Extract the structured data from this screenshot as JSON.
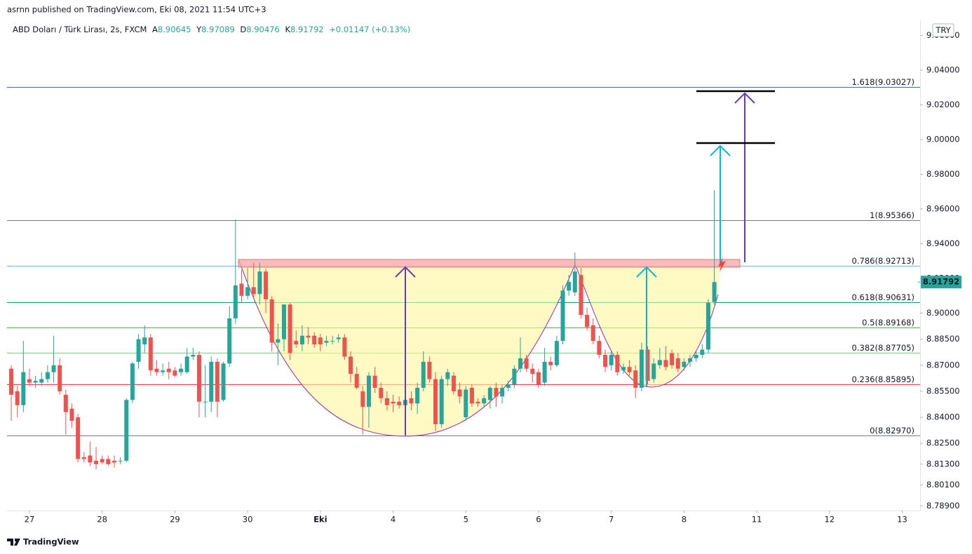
{
  "header": {
    "published": "asrnn published on TradingView.com, Eki 08, 2021 11:54 UTC+3",
    "symbol": "ABD Doları / Türk Lirası, 2s, FXCM",
    "ohlc_letters": [
      "A",
      "Y",
      "D",
      "K"
    ],
    "change": "+0.01147 (+0.13%)",
    "currency": "TRY",
    "brand": "TradingView"
  },
  "chart_data": {
    "type": "candlestick",
    "up_color": "#26a69a",
    "down_color": "#ef5350",
    "grid": false,
    "x": [
      -6,
      -4,
      -2,
      0,
      2,
      4,
      6,
      8,
      10,
      12,
      14,
      16,
      18,
      20,
      22,
      24,
      26,
      28,
      30,
      32,
      34,
      36,
      38,
      40,
      42,
      44,
      46,
      48,
      50,
      52,
      54,
      56,
      58,
      60,
      62,
      64,
      66,
      68,
      70,
      72,
      74,
      76,
      78,
      80,
      82,
      84,
      86,
      88,
      90,
      92,
      94,
      96,
      98,
      100,
      102,
      104,
      106,
      108,
      110,
      112,
      114,
      116,
      118,
      120,
      122,
      124,
      126,
      128,
      130,
      132,
      134,
      136,
      138,
      140,
      142,
      144,
      146,
      148,
      150,
      152,
      154,
      156,
      158,
      160,
      162,
      164,
      166,
      168,
      170,
      172,
      174,
      176,
      178,
      180,
      182,
      184,
      186,
      188,
      190,
      192,
      194,
      196,
      198,
      200,
      202,
      204,
      206,
      208,
      210,
      212,
      214,
      216,
      218,
      220,
      222,
      224,
      226
    ],
    "open": [
      8.868,
      8.855,
      8.847,
      8.862,
      8.86,
      8.86,
      8.862,
      8.866,
      8.87,
      8.853,
      8.845,
      8.84,
      8.817,
      8.818,
      8.815,
      8.816,
      8.816,
      8.815,
      8.815,
      8.815,
      8.85,
      8.872,
      8.882,
      8.886,
      8.868,
      8.866,
      8.868,
      8.867,
      8.866,
      8.866,
      8.875,
      8.876,
      8.849,
      8.849,
      8.872,
      8.85,
      8.871,
      8.897,
      8.917,
      8.91,
      8.915,
      8.911,
      8.924,
      8.908,
      8.883,
      8.885,
      8.905,
      8.884,
      8.882,
      8.887,
      8.887,
      8.886,
      8.883,
      8.884,
      8.885,
      8.886,
      8.875,
      8.865,
      8.855,
      8.846,
      8.864,
      8.857,
      8.851,
      8.849,
      8.849,
      8.847,
      8.851,
      8.848,
      8.857,
      8.872,
      8.862,
      8.836,
      8.862,
      8.864,
      8.856,
      8.84,
      8.857,
      8.849,
      8.848,
      8.85,
      8.857,
      8.852,
      8.857,
      8.859,
      8.868,
      8.874,
      8.868,
      8.866,
      8.86,
      8.872,
      8.87,
      8.884,
      8.913,
      8.912,
      8.922,
      8.899,
      8.893,
      8.884,
      8.876,
      8.87,
      8.876,
      8.867,
      8.869,
      8.867,
      8.857,
      8.879,
      8.862,
      8.87,
      8.873,
      8.877,
      8.874,
      8.869,
      8.872,
      8.874,
      8.876,
      8.879,
      8.90645
    ],
    "high": [
      8.87,
      8.858,
      8.884,
      8.868,
      8.864,
      8.866,
      8.87,
      8.887,
      8.874,
      8.856,
      8.848,
      8.842,
      8.82,
      8.826,
      8.823,
      8.818,
      8.818,
      8.818,
      8.817,
      8.851,
      8.872,
      8.888,
      8.893,
      8.888,
      8.873,
      8.871,
      8.872,
      8.869,
      8.871,
      8.88,
      8.88,
      8.878,
      8.87,
      8.875,
      8.874,
      8.872,
      8.904,
      8.954,
      8.925,
      8.926,
      8.929,
      8.929,
      8.926,
      8.91,
      8.894,
      8.905,
      8.906,
      8.89,
      8.893,
      8.892,
      8.889,
      8.888,
      8.887,
      8.887,
      8.888,
      8.888,
      8.878,
      8.869,
      8.858,
      8.866,
      8.869,
      8.86,
      8.855,
      8.853,
      8.852,
      8.852,
      8.855,
      8.86,
      8.878,
      8.875,
      8.866,
      8.864,
      8.868,
      8.866,
      8.86,
      8.858,
      8.859,
      8.851,
      8.853,
      8.858,
      8.86,
      8.859,
      8.861,
      8.87,
      8.886,
      8.876,
      8.871,
      8.868,
      8.88,
      8.875,
      8.887,
      8.916,
      8.922,
      8.935,
      8.926,
      8.903,
      8.897,
      8.887,
      8.879,
      8.878,
      8.878,
      8.871,
      8.873,
      8.87,
      8.883,
      8.881,
      8.874,
      8.88,
      8.881,
      8.879,
      8.877,
      8.874,
      8.876,
      8.878,
      8.882,
      8.908,
      8.97089
    ],
    "low": [
      8.838,
      8.84,
      8.843,
      8.858,
      8.857,
      8.858,
      8.86,
      8.86,
      8.853,
      8.83,
      8.834,
      8.814,
      8.814,
      8.812,
      8.81,
      8.813,
      8.812,
      8.811,
      8.813,
      8.814,
      8.848,
      8.868,
      8.877,
      8.864,
      8.864,
      8.864,
      8.862,
      8.863,
      8.864,
      8.865,
      8.873,
      8.84,
      8.84,
      8.843,
      8.84,
      8.849,
      8.869,
      8.894,
      8.906,
      8.908,
      8.909,
      8.905,
      8.9,
      8.878,
      8.87,
      8.878,
      8.873,
      8.88,
      8.878,
      8.882,
      8.88,
      8.878,
      8.881,
      8.882,
      8.883,
      8.873,
      8.86,
      8.856,
      8.83,
      8.834,
      8.854,
      8.848,
      8.844,
      8.843,
      8.845,
      8.838,
      8.844,
      8.842,
      8.855,
      8.86,
      8.832,
      8.834,
      8.858,
      8.853,
      8.848,
      8.838,
      8.846,
      8.846,
      8.846,
      8.845,
      8.846,
      8.848,
      8.855,
      8.857,
      8.866,
      8.866,
      8.86,
      8.857,
      8.858,
      8.867,
      8.869,
      8.882,
      8.91,
      8.91,
      8.897,
      8.89,
      8.882,
      8.874,
      8.866,
      8.867,
      8.864,
      8.865,
      8.864,
      8.851,
      8.855,
      8.859,
      8.86,
      8.868,
      8.867,
      8.868,
      8.866,
      8.867,
      8.869,
      8.872,
      8.874,
      8.877,
      8.90476
    ],
    "close": [
      8.853,
      8.847,
      8.866,
      8.86,
      8.861,
      8.862,
      8.866,
      8.87,
      8.855,
      8.843,
      8.838,
      8.816,
      8.816,
      8.814,
      8.813,
      8.814,
      8.813,
      8.814,
      8.815,
      8.85,
      8.871,
      8.885,
      8.886,
      8.867,
      8.866,
      8.867,
      8.866,
      8.864,
      8.868,
      8.875,
      8.876,
      8.849,
      8.849,
      8.872,
      8.849,
      8.871,
      8.897,
      8.916,
      8.91,
      8.915,
      8.911,
      8.924,
      8.908,
      8.883,
      8.885,
      8.905,
      8.877,
      8.882,
      8.887,
      8.886,
      8.882,
      8.882,
      8.884,
      8.884,
      8.886,
      8.875,
      8.865,
      8.857,
      8.846,
      8.864,
      8.857,
      8.851,
      8.847,
      8.848,
      8.847,
      8.85,
      8.848,
      8.857,
      8.872,
      8.862,
      8.836,
      8.862,
      8.866,
      8.855,
      8.852,
      8.856,
      8.848,
      8.848,
      8.851,
      8.857,
      8.852,
      8.857,
      8.859,
      8.868,
      8.874,
      8.868,
      8.865,
      8.859,
      8.872,
      8.87,
      8.884,
      8.913,
      8.918,
      8.924,
      8.899,
      8.892,
      8.884,
      8.876,
      8.869,
      8.876,
      8.866,
      8.869,
      8.866,
      8.857,
      8.879,
      8.861,
      8.871,
      8.873,
      8.869,
      8.87,
      8.868,
      8.872,
      8.874,
      8.876,
      8.879,
      8.906,
      8.91792
    ],
    "xlim": [
      -7.4,
      293.9
    ],
    "xticks": [
      {
        "value": 0,
        "label": "27"
      },
      {
        "value": 24,
        "label": "28"
      },
      {
        "value": 48,
        "label": "29"
      },
      {
        "value": 72,
        "label": "30"
      },
      {
        "value": 96,
        "label": "Eki"
      },
      {
        "value": 120,
        "label": "4"
      },
      {
        "value": 144,
        "label": "5"
      },
      {
        "value": 168,
        "label": "6"
      },
      {
        "value": 192,
        "label": "7"
      },
      {
        "value": 216,
        "label": "8"
      },
      {
        "value": 240,
        "label": "11"
      },
      {
        "value": 264,
        "label": "12"
      },
      {
        "value": 288,
        "label": "13"
      }
    ],
    "ylim": [
      8.7863,
      9.0691
    ],
    "yticks": [
      {
        "value": 9.06,
        "label": "9.06000"
      },
      {
        "value": 9.04,
        "label": "9.04000"
      },
      {
        "value": 9.02,
        "label": "9.02000"
      },
      {
        "value": 9.0,
        "label": "9.00000"
      },
      {
        "value": 8.98,
        "label": "8.98000"
      },
      {
        "value": 8.96,
        "label": "8.96000"
      },
      {
        "value": 8.94,
        "label": "8.94000"
      },
      {
        "value": 8.92,
        "label": "8.92000"
      },
      {
        "value": 8.9,
        "label": "8.90000"
      },
      {
        "value": 8.885,
        "label": "8.88500"
      },
      {
        "value": 8.87,
        "label": "8.87000"
      },
      {
        "value": 8.855,
        "label": "8.85500"
      },
      {
        "value": 8.84,
        "label": "8.84000"
      },
      {
        "value": 8.825,
        "label": "8.82500"
      },
      {
        "value": 8.813,
        "label": "8.81300"
      },
      {
        "value": 8.801,
        "label": "8.80100"
      },
      {
        "value": 8.789,
        "label": "8.78900"
      }
    ],
    "levels": [
      {
        "label": "1.618(9.03027)",
        "value": 9.03027,
        "color": "#2962ff"
      },
      {
        "label": "1(8.95366)",
        "value": 8.95366,
        "color": "#787b86"
      },
      {
        "label": "0.786(8.92713)",
        "value": 8.92713,
        "color": "#64b5f6"
      },
      {
        "label": "0.618(8.90631)",
        "value": 8.90631,
        "color": "#089981"
      },
      {
        "label": "0.5(8.89168)",
        "value": 8.89168,
        "color": "#4caf50"
      },
      {
        "label": "0.382(8.87705)",
        "value": 8.87705,
        "color": "#81c784"
      },
      {
        "label": "0.236(8.85895)",
        "value": 8.85895,
        "color": "#f23645"
      },
      {
        "label": "0(8.82970)",
        "value": 8.8297,
        "color": "#787b86"
      }
    ]
  }
}
